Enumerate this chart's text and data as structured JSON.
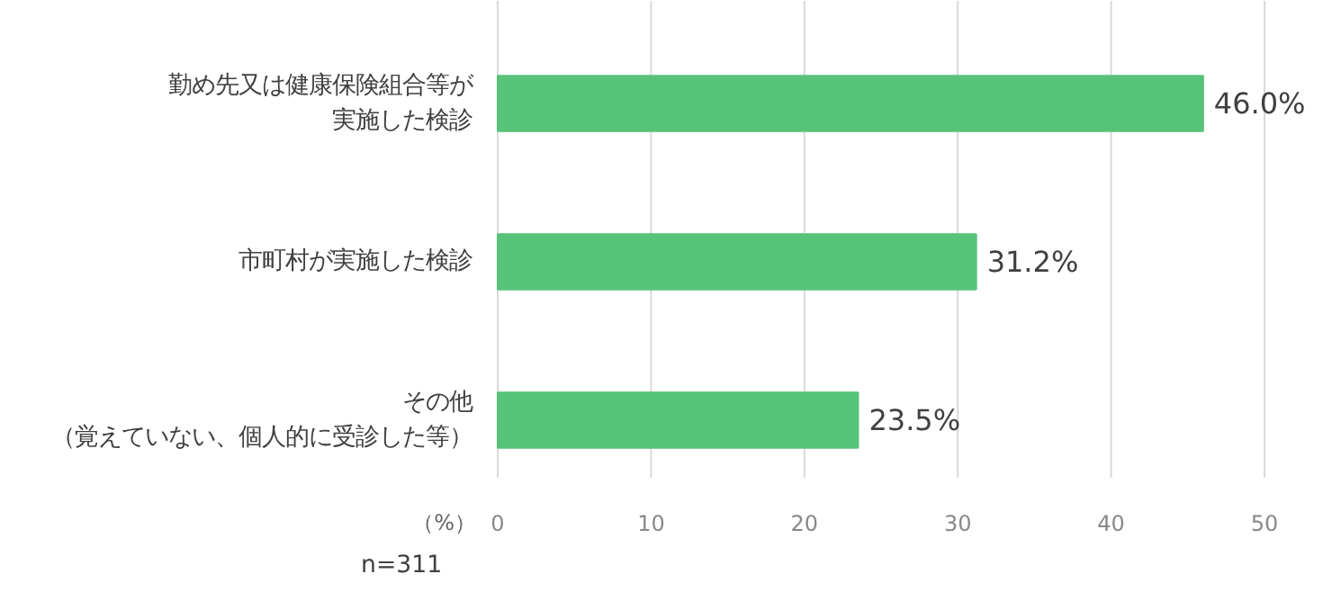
{
  "chart_data": {
    "type": "bar",
    "orientation": "horizontal",
    "categories": [
      "勤め先又は健康保険組合等が実施した検診",
      "市町村が実施した検診",
      "その他（覚えていない、個人的に受診した等）"
    ],
    "values": [
      46.0,
      31.2,
      23.5
    ],
    "value_labels": [
      "46.0%",
      "31.2%",
      "23.5%"
    ],
    "color": "#56c378",
    "xlim": [
      0,
      50
    ],
    "xticks": [
      0,
      10,
      20,
      30,
      40,
      50
    ],
    "xlabel": "（%）",
    "grid": "x",
    "annotations": [
      "n=311"
    ]
  }
}
